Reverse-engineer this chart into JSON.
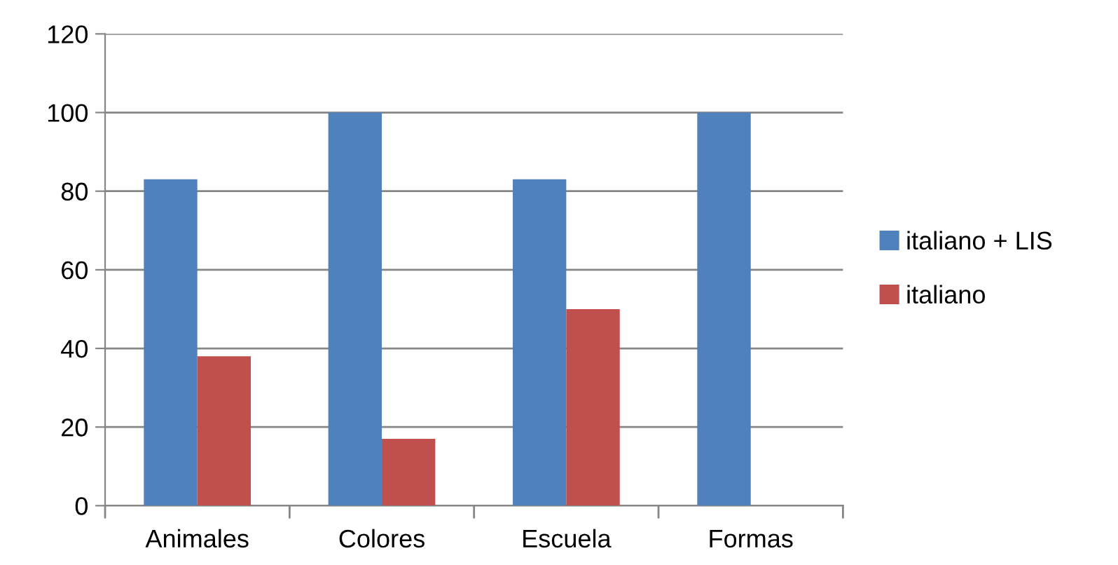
{
  "chart_data": {
    "type": "bar",
    "categories": [
      "Animales",
      "Colores",
      "Escuela",
      "Formas"
    ],
    "series": [
      {
        "name": "italiano + LIS",
        "color": "#4f81bd",
        "values": [
          83,
          100,
          83,
          100
        ]
      },
      {
        "name": "italiano",
        "color": "#c0504d",
        "values": [
          38,
          17,
          50,
          null
        ]
      }
    ],
    "ylim": [
      0,
      120
    ],
    "yticks": [
      0,
      20,
      40,
      60,
      80,
      100,
      120
    ],
    "grid": "y",
    "legend": "right"
  }
}
